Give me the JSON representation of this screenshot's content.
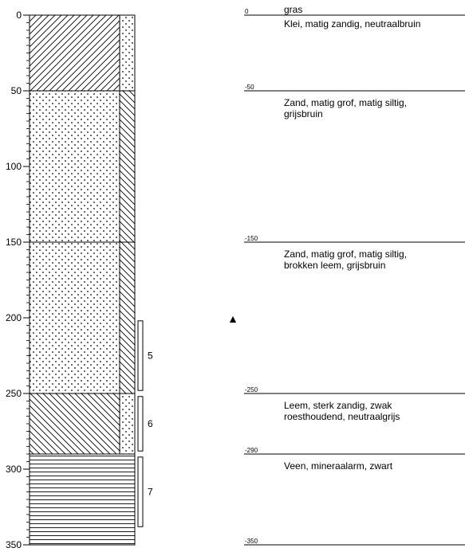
{
  "axis": {
    "ticks": [
      {
        "depth": 0,
        "label": "0"
      },
      {
        "depth": 50,
        "label": "50"
      },
      {
        "depth": 100,
        "label": "100"
      },
      {
        "depth": 150,
        "label": "150"
      },
      {
        "depth": 200,
        "label": "200"
      },
      {
        "depth": 250,
        "label": "250"
      },
      {
        "depth": 300,
        "label": "300"
      },
      {
        "depth": 350,
        "label": "350"
      }
    ],
    "minor_step": 5,
    "range": [
      0,
      350
    ]
  },
  "layers": [
    {
      "top": 0,
      "bottom": 50,
      "main": "clay",
      "side": "sand"
    },
    {
      "top": 50,
      "bottom": 150,
      "main": "sand",
      "side": "loam"
    },
    {
      "top": 150,
      "bottom": 250,
      "main": "sand",
      "side": "loam"
    },
    {
      "top": 250,
      "bottom": 290,
      "main": "loam",
      "side": "sand"
    },
    {
      "top": 290,
      "bottom": 350,
      "main": "peat",
      "side": "peat"
    }
  ],
  "samples": [
    {
      "top": 202,
      "bottom": 248,
      "label": "5"
    },
    {
      "top": 252,
      "bottom": 288,
      "label": "6"
    },
    {
      "top": 292,
      "bottom": 338,
      "label": "7"
    }
  ],
  "water_level": {
    "depth": 200,
    "symbol": "▲"
  },
  "descriptions": [
    {
      "depth": 0,
      "depth_label": "0",
      "lines": [
        "gras",
        "Klei, matig zandig, neutraalbruin"
      ]
    },
    {
      "depth": -50,
      "depth_label": "-50",
      "lines": [
        "Zand, matig grof, matig siltig,",
        "grijsbruin"
      ]
    },
    {
      "depth": -150,
      "depth_label": "-150",
      "lines": [
        "Zand, matig grof, matig siltig,",
        "brokken leem, grijsbruin"
      ]
    },
    {
      "depth": -250,
      "depth_label": "-250",
      "lines": [
        "Leem, sterk zandig, zwak",
        "roesthoudend, neutraalgrijs"
      ]
    },
    {
      "depth": -290,
      "depth_label": "-290",
      "lines": [
        "Veen, mineraalarm, zwart"
      ]
    },
    {
      "depth": -350,
      "depth_label": "-350",
      "lines": []
    }
  ]
}
